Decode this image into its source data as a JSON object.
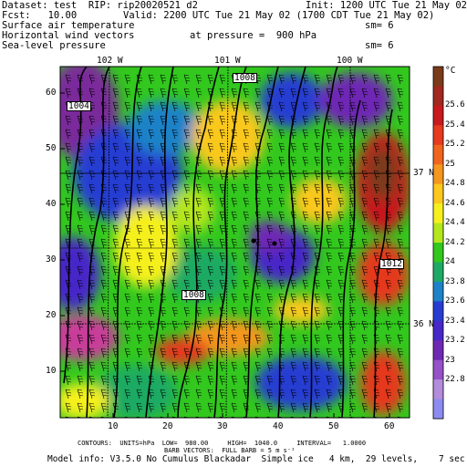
{
  "header": {
    "dataset": "Dataset: test  RIP: rip20020521 d2",
    "init": "Init: 1200 UTC Tue 21 May 02",
    "fcst": "Fcst:   10.00",
    "valid": "Valid: 2200 UTC Tue 21 May 02 (1700 CDT Tue 21 May 02)",
    "line3_left": "Surface air temperature",
    "line3_right": "sm= 6",
    "line4_left": "Horizontal wind vectors",
    "line4_mid": "at pressure =  900 hPa",
    "line5_left": "Sea-level pressure",
    "line5_right": "sm= 6"
  },
  "map": {
    "lon_labels": [
      "102 W",
      "101 W",
      "100 W"
    ],
    "lat_labels": [
      "37 N",
      "36 N"
    ],
    "y_ticks": [
      "10",
      "20",
      "30",
      "40",
      "50",
      "60"
    ],
    "x_ticks": [
      "10",
      "20",
      "30",
      "40",
      "50",
      "60"
    ],
    "contour_labels": [
      "1008",
      "1004",
      "1008",
      "1012"
    ]
  },
  "colorbar": {
    "unit": "°C",
    "labels": [
      "25.6",
      "25.4",
      "25.2",
      "25",
      "24.8",
      "24.6",
      "24.4",
      "24.2",
      "24",
      "23.8",
      "23.6",
      "23.4",
      "23.2",
      "23",
      "22.8"
    ],
    "colors": [
      "#7a3b1a",
      "#a0281e",
      "#c8191e",
      "#e6391e",
      "#f0641e",
      "#f5961e",
      "#fac81e",
      "#f5f01e",
      "#b4e61e",
      "#32c81e",
      "#1eaa64",
      "#1e82c8",
      "#283cd2",
      "#4628c8",
      "#6e28b4",
      "#9650c8",
      "#b48cdc",
      "#8c8cf0"
    ]
  },
  "footer": {
    "line1": "CONTOURS:  UNITS=hPa  LOW=  980.00     HIGH=  1040.0     INTERVAL=   1.0000",
    "line2": "BARB VECTORS:  FULL BARB = 5 m s⁻¹",
    "line3": "Model info: V3.5.0 No Cumulus Blackadar  Simple ice   4 km,  29 levels,    7 sec"
  }
}
